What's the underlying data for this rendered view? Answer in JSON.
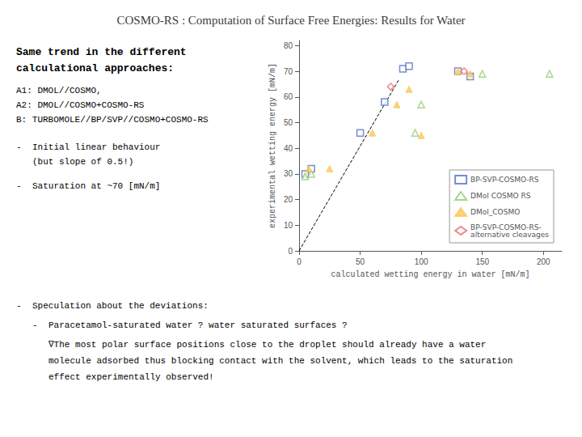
{
  "chart_data": {
    "type": "scatter",
    "title": "COSMO-RS : Computation of Surface Free Energies: Results for Water",
    "xlabel": "calculated wetting energy in water [mN/m]",
    "ylabel": "experimental wetting energy [mN/m]",
    "xlim": [
      0,
      215
    ],
    "ylim": [
      0,
      82
    ],
    "xticks": [
      0,
      50,
      100,
      150,
      200
    ],
    "yticks": [
      0,
      10,
      20,
      30,
      40,
      50,
      60,
      70,
      80
    ],
    "grid": false,
    "legend": "lower right",
    "series": [
      {
        "name": "BP-SVP-COSMO-RS",
        "type": "scatter",
        "marker": "square-open",
        "x": [
          5,
          10,
          50,
          70,
          85,
          90,
          130,
          140
        ],
        "values": [
          30,
          32,
          46,
          58,
          71,
          72,
          70,
          68
        ]
      },
      {
        "name": "DMol COSMO RS",
        "type": "scatter",
        "marker": "triangle-open",
        "x": [
          5,
          10,
          95,
          100,
          150,
          205
        ],
        "values": [
          29,
          30,
          46,
          57,
          69,
          69
        ]
      },
      {
        "name": "DMol_COSMO",
        "type": "scatter",
        "marker": "triangle",
        "x": [
          8,
          25,
          60,
          80,
          90,
          100,
          130,
          140
        ],
        "values": [
          32,
          32,
          46,
          57,
          63,
          45,
          70,
          69
        ]
      },
      {
        "name": "BP-SVP-COSMO-RS-\nalternative cleavages",
        "type": "scatter",
        "marker": "diamond-open",
        "x": [
          75,
          135
        ],
        "values": [
          64,
          70
        ]
      },
      {
        "type": "line",
        "line_style": "dashed",
        "color": "black",
        "x": [
          0,
          82
        ],
        "values": [
          0,
          67
        ]
      }
    ],
    "annotations": [
      "Same trend in the different",
      "calculational approaches:",
      "A1: DMOL//COSMO,",
      "A2: DMOL//COSMO+COSMO-RS",
      "B: TURBOMOLE//BP/SVP//COSMO+COSMO-RS",
      "-",
      "Initial linear behaviour",
      "(but slope of 0.5!)",
      "-",
      "Saturation at ~70 [mN/m]",
      "-",
      "Speculation about the deviations:",
      "-",
      "Paracetamol-saturated water ? water saturated surfaces ?",
      "∇The most polar surface positions close to the droplet should already have a water",
      "molecule adsorbed thus blocking contact with the solvent, which leads to the saturation",
      "effect experimentally observed!"
    ]
  }
}
